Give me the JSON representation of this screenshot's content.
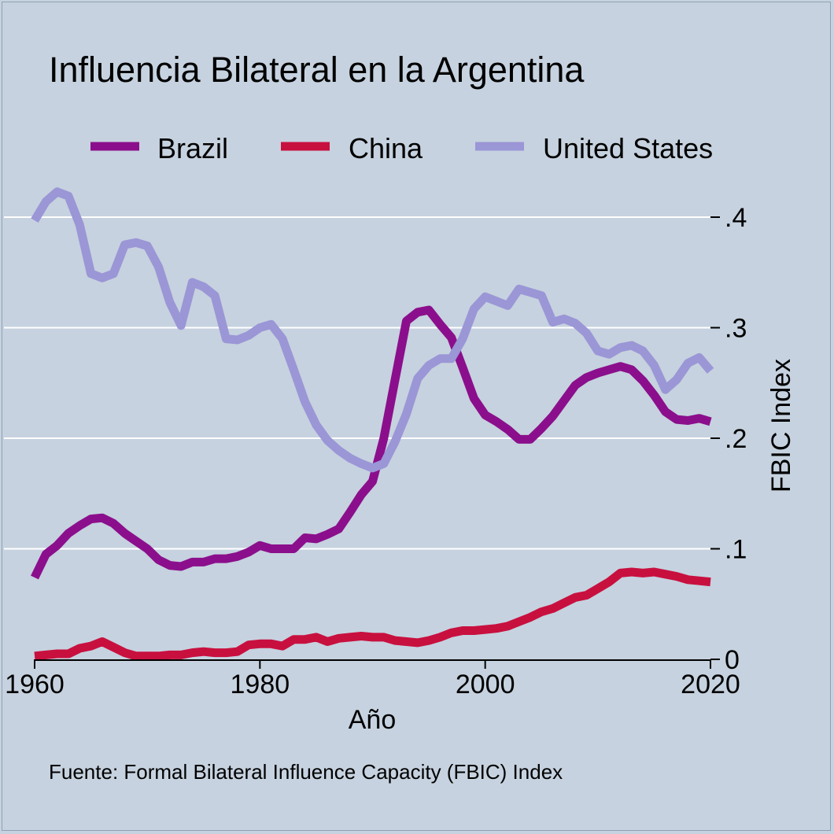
{
  "chart_data": {
    "type": "line",
    "title": "Influencia Bilateral en la Argentina",
    "xlabel": "Año",
    "ylabel": "FBIC Index",
    "source_note": "Fuente: Formal Bilateral Influence Capacity (FBIC) Index",
    "xlim": [
      1960,
      2020
    ],
    "ylim": [
      0,
      0.43
    ],
    "x_ticks": [
      1960,
      1980,
      2000,
      2020
    ],
    "x_tick_labels": [
      "1960",
      "1980",
      "2000",
      "2020"
    ],
    "y_ticks": [
      0,
      0.1,
      0.2,
      0.3,
      0.4
    ],
    "y_tick_labels": [
      "0",
      ".1",
      ".2",
      ".3",
      ".4"
    ],
    "y_axis_side": "right",
    "grid": "horizontal",
    "legend_position": "top",
    "x": [
      1960,
      1961,
      1962,
      1963,
      1964,
      1965,
      1966,
      1967,
      1968,
      1969,
      1970,
      1971,
      1972,
      1973,
      1974,
      1975,
      1976,
      1977,
      1978,
      1979,
      1980,
      1981,
      1982,
      1983,
      1984,
      1985,
      1986,
      1987,
      1988,
      1989,
      1990,
      1991,
      1992,
      1993,
      1994,
      1995,
      1996,
      1997,
      1998,
      1999,
      2000,
      2001,
      2002,
      2003,
      2004,
      2005,
      2006,
      2007,
      2008,
      2009,
      2010,
      2011,
      2012,
      2013,
      2014,
      2015,
      2016,
      2017,
      2018,
      2019,
      2020
    ],
    "series": [
      {
        "name": "Brazil",
        "color": "#8b0f8c",
        "values": [
          0.074,
          0.095,
          0.103,
          0.114,
          0.121,
          0.127,
          0.128,
          0.123,
          0.114,
          0.107,
          0.1,
          0.09,
          0.085,
          0.084,
          0.088,
          0.088,
          0.091,
          0.091,
          0.093,
          0.097,
          0.103,
          0.1,
          0.1,
          0.1,
          0.11,
          0.109,
          0.113,
          0.118,
          0.133,
          0.149,
          0.161,
          0.2,
          0.253,
          0.306,
          0.314,
          0.316,
          0.303,
          0.291,
          0.264,
          0.236,
          0.221,
          0.215,
          0.208,
          0.199,
          0.199,
          0.209,
          0.22,
          0.234,
          0.248,
          0.255,
          0.259,
          0.262,
          0.265,
          0.262,
          0.252,
          0.239,
          0.224,
          0.217,
          0.216,
          0.218,
          0.215
        ]
      },
      {
        "name": "China",
        "color": "#c8103f",
        "values": [
          0.003,
          0.004,
          0.005,
          0.005,
          0.01,
          0.012,
          0.016,
          0.011,
          0.006,
          0.003,
          0.003,
          0.003,
          0.004,
          0.004,
          0.006,
          0.007,
          0.006,
          0.006,
          0.007,
          0.013,
          0.014,
          0.014,
          0.012,
          0.018,
          0.018,
          0.02,
          0.016,
          0.019,
          0.02,
          0.021,
          0.02,
          0.02,
          0.017,
          0.016,
          0.015,
          0.017,
          0.02,
          0.024,
          0.026,
          0.026,
          0.027,
          0.028,
          0.03,
          0.034,
          0.038,
          0.043,
          0.046,
          0.051,
          0.056,
          0.058,
          0.064,
          0.07,
          0.078,
          0.079,
          0.078,
          0.079,
          0.077,
          0.075,
          0.072,
          0.071,
          0.07
        ]
      },
      {
        "name": "United States",
        "color": "#9b96d6",
        "values": [
          0.397,
          0.414,
          0.423,
          0.419,
          0.393,
          0.349,
          0.345,
          0.349,
          0.375,
          0.377,
          0.374,
          0.355,
          0.323,
          0.302,
          0.341,
          0.337,
          0.329,
          0.29,
          0.289,
          0.293,
          0.3,
          0.303,
          0.29,
          0.262,
          0.233,
          0.212,
          0.198,
          0.189,
          0.182,
          0.177,
          0.173,
          0.177,
          0.197,
          0.222,
          0.254,
          0.266,
          0.272,
          0.272,
          0.29,
          0.317,
          0.328,
          0.324,
          0.32,
          0.335,
          0.332,
          0.329,
          0.305,
          0.308,
          0.304,
          0.295,
          0.279,
          0.276,
          0.282,
          0.284,
          0.279,
          0.266,
          0.244,
          0.253,
          0.268,
          0.273,
          0.261
        ]
      }
    ]
  },
  "style": {
    "background": "#c6d2df",
    "grid_color": "#ffffff",
    "text_color": "#000000"
  }
}
